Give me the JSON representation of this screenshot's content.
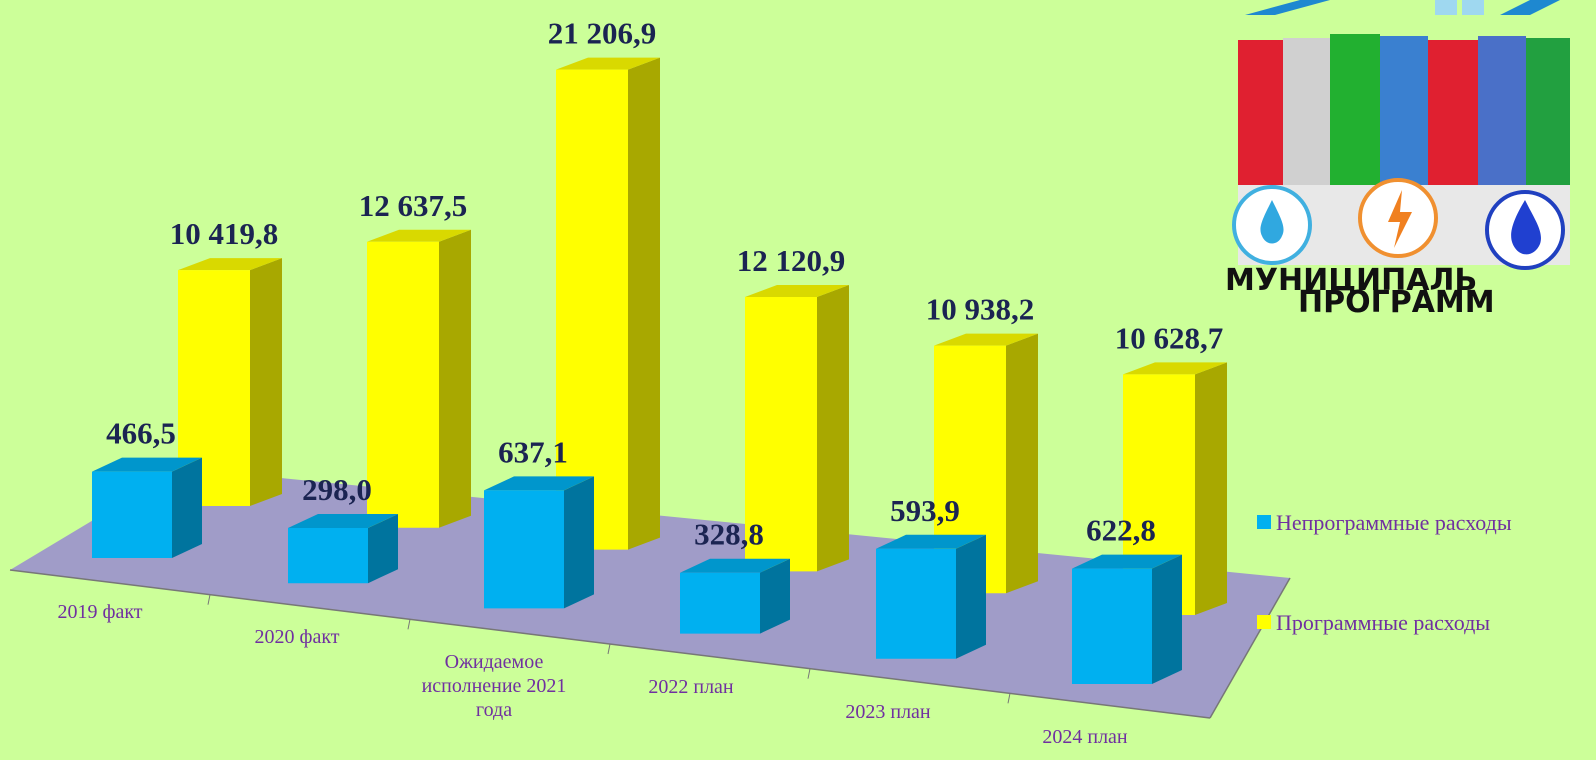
{
  "chart_data": {
    "type": "bar3d",
    "categories": [
      "2019 факт",
      "2020 факт",
      "Ожидаемое исполнение 2021 года",
      "2022 план",
      "2023 план",
      "2024 план"
    ],
    "series": [
      {
        "name": "Непрограммные расходы",
        "color": "#00b0f0",
        "values": [
          466.5,
          298.0,
          637.1,
          328.8,
          593.9,
          622.8
        ],
        "value_labels": [
          "466,5",
          "298,0",
          "637,1",
          "328,8",
          "593,9",
          "622,8"
        ]
      },
      {
        "name": "Программные расходы",
        "color": "#ffff00",
        "values": [
          10419.8,
          12637.5,
          21206.9,
          12120.9,
          10938.2,
          10628.7
        ],
        "value_labels": [
          "10 419,8",
          "12 637,5",
          "21 206,9",
          "12 120,9",
          "10 938,2",
          "10 628,7"
        ]
      }
    ],
    "legend": "right"
  },
  "picture_caption": [
    "МУНИЦИПАЛЬ",
    "ПРОГРАММ"
  ]
}
